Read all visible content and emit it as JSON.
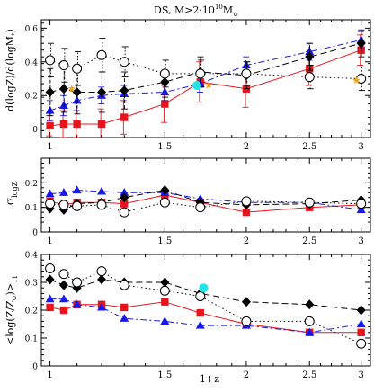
{
  "figure": {
    "title_parts": [
      "DS, M>2·10",
      "10",
      "M",
      "⊙"
    ],
    "xlabel": "1+z"
  },
  "colors": {
    "red": "#e8141c",
    "blue": "#1818e8",
    "black": "#000000",
    "orange": "#f7a21b",
    "cyan": "#22e3e6",
    "axis": "#000000"
  },
  "chart_data": [
    {
      "type": "line",
      "title": "DS, M>2·10¹⁰M⊙",
      "ylabel_parts": [
        "d(logZ)/d(logM",
        "*",
        ")"
      ],
      "xlabel": "",
      "xlog": true,
      "xlim": [
        0.97,
        3.1
      ],
      "ylim": [
        -0.05,
        0.65
      ],
      "xticks": [
        1,
        1.5,
        2,
        2.5,
        3
      ],
      "xticklabels": [
        "1",
        "1.5",
        "2",
        "2.5",
        "3"
      ],
      "yticks": [
        0,
        0.2,
        0.4,
        0.6
      ],
      "yticklabels": [
        "0",
        "0.2",
        "0.4",
        "0.6"
      ],
      "x": [
        1.0,
        1.05,
        1.1,
        1.2,
        1.3,
        1.5,
        1.7,
        2.0,
        2.5,
        3.0
      ],
      "series": [
        {
          "color": "red",
          "marker": "square",
          "dash": "",
          "values": [
            0.02,
            0.03,
            0.03,
            0.03,
            0.07,
            0.15,
            0.28,
            0.24,
            0.36,
            0.47
          ],
          "err": [
            0.06,
            0.08,
            0.08,
            0.09,
            0.1,
            0.11,
            0.12,
            0.11,
            0.1,
            0.09
          ]
        },
        {
          "color": "blue",
          "marker": "triangle",
          "dash": "7 3 2 3",
          "values": [
            0.11,
            0.14,
            0.17,
            0.2,
            0.21,
            0.22,
            0.27,
            0.38,
            0.46,
            0.53
          ],
          "err": [
            0.06,
            0.06,
            0.06,
            0.05,
            0.05,
            0.05,
            0.05,
            0.05,
            0.05,
            0.05
          ]
        },
        {
          "color": "black",
          "marker": "diamond",
          "dash": "7 4",
          "values": [
            0.22,
            0.24,
            0.22,
            0.22,
            0.23,
            0.28,
            0.34,
            0.32,
            0.43,
            0.51
          ],
          "err": [
            0.14,
            0.14,
            0.13,
            0.12,
            0.11,
            0.09,
            0.09,
            0.08,
            0.08,
            0.08
          ]
        },
        {
          "color": "black",
          "marker": "circle",
          "dash": "1.5 3",
          "values": [
            0.41,
            0.38,
            0.36,
            0.44,
            0.4,
            0.33,
            0.33,
            0.33,
            0.31,
            0.3
          ],
          "err": [
            0.1,
            0.1,
            0.1,
            0.1,
            0.09,
            0.08,
            0.08,
            0.07,
            0.07,
            0.07
          ]
        }
      ],
      "extra_points": [
        {
          "color": "orange",
          "marker": "star",
          "x": 1.08,
          "y": 0.24
        },
        {
          "color": "orange",
          "marker": "star",
          "x": 1.75,
          "y": 0.26
        },
        {
          "color": "orange",
          "marker": "star",
          "x": 2.95,
          "y": 0.29
        },
        {
          "color": "cyan",
          "marker": "filled-circle",
          "x": 1.68,
          "y": 0.26
        }
      ]
    },
    {
      "type": "line",
      "ylabel_parts": [
        "σ",
        "logZ"
      ],
      "xlabel": "",
      "xlog": true,
      "xlim": [
        0.97,
        3.1
      ],
      "ylim": [
        0,
        0.3
      ],
      "xticks": [
        1,
        1.5,
        2,
        2.5,
        3
      ],
      "xticklabels": [
        "1",
        "1.5",
        "2",
        "2.5",
        "3"
      ],
      "yticks": [
        0,
        0.1,
        0.2
      ],
      "yticklabels": [
        "0",
        "0.1",
        "0.2"
      ],
      "x": [
        1.0,
        1.05,
        1.1,
        1.2,
        1.3,
        1.5,
        1.7,
        2.0,
        2.5,
        3.0
      ],
      "series": [
        {
          "color": "red",
          "marker": "square",
          "dash": "",
          "values": [
            0.125,
            0.11,
            0.12,
            0.12,
            0.115,
            0.15,
            0.12,
            0.08,
            0.1,
            0.11
          ]
        },
        {
          "color": "blue",
          "marker": "triangle",
          "dash": "7 3 2 3",
          "values": [
            0.155,
            0.16,
            0.17,
            0.165,
            0.16,
            0.16,
            0.135,
            0.12,
            0.12,
            0.09
          ]
        },
        {
          "color": "black",
          "marker": "diamond",
          "dash": "7 4",
          "values": [
            0.095,
            0.09,
            0.115,
            0.12,
            0.14,
            0.17,
            0.12,
            0.11,
            0.115,
            0.13
          ]
        },
        {
          "color": "black",
          "marker": "circle",
          "dash": "1.5 3",
          "values": [
            0.115,
            0.11,
            0.105,
            0.11,
            0.08,
            0.12,
            0.1,
            0.125,
            0.12,
            0.115
          ]
        }
      ],
      "extra_points": []
    },
    {
      "type": "line",
      "ylabel_parts": [
        "<log(Z/Z",
        "⊙",
        ")>",
        "11"
      ],
      "xlabel": "1+z",
      "xlog": true,
      "xlim": [
        0.97,
        3.1
      ],
      "ylim": [
        0,
        0.4
      ],
      "xticks": [
        1,
        1.5,
        2,
        2.5,
        3
      ],
      "xticklabels": [
        "1",
        "1.5",
        "2",
        "2.5",
        "3"
      ],
      "yticks": [
        0,
        0.1,
        0.2,
        0.3,
        0.4
      ],
      "yticklabels": [
        "0",
        "0.1",
        "0.2",
        "0.3",
        "0.4"
      ],
      "x": [
        1.0,
        1.05,
        1.1,
        1.2,
        1.3,
        1.5,
        1.7,
        2.0,
        2.5,
        3.0
      ],
      "series": [
        {
          "color": "red",
          "marker": "square",
          "dash": "",
          "values": [
            0.21,
            0.2,
            0.22,
            0.22,
            0.21,
            0.23,
            0.19,
            0.15,
            0.12,
            0.12
          ]
        },
        {
          "color": "blue",
          "marker": "triangle",
          "dash": "7 3 2 3",
          "values": [
            0.24,
            0.24,
            0.22,
            0.21,
            0.17,
            0.16,
            0.145,
            0.145,
            0.12,
            0.15
          ]
        },
        {
          "color": "black",
          "marker": "diamond",
          "dash": "7 4",
          "values": [
            0.31,
            0.29,
            0.28,
            0.31,
            0.3,
            0.3,
            0.26,
            0.23,
            0.22,
            0.2
          ]
        },
        {
          "color": "black",
          "marker": "circle",
          "dash": "1.5 3",
          "values": [
            0.35,
            0.33,
            0.3,
            0.34,
            0.29,
            0.27,
            0.25,
            0.16,
            0.16,
            0.08
          ]
        }
      ],
      "extra_points": [
        {
          "color": "cyan",
          "marker": "filled-circle",
          "x": 1.72,
          "y": 0.28
        }
      ]
    }
  ]
}
